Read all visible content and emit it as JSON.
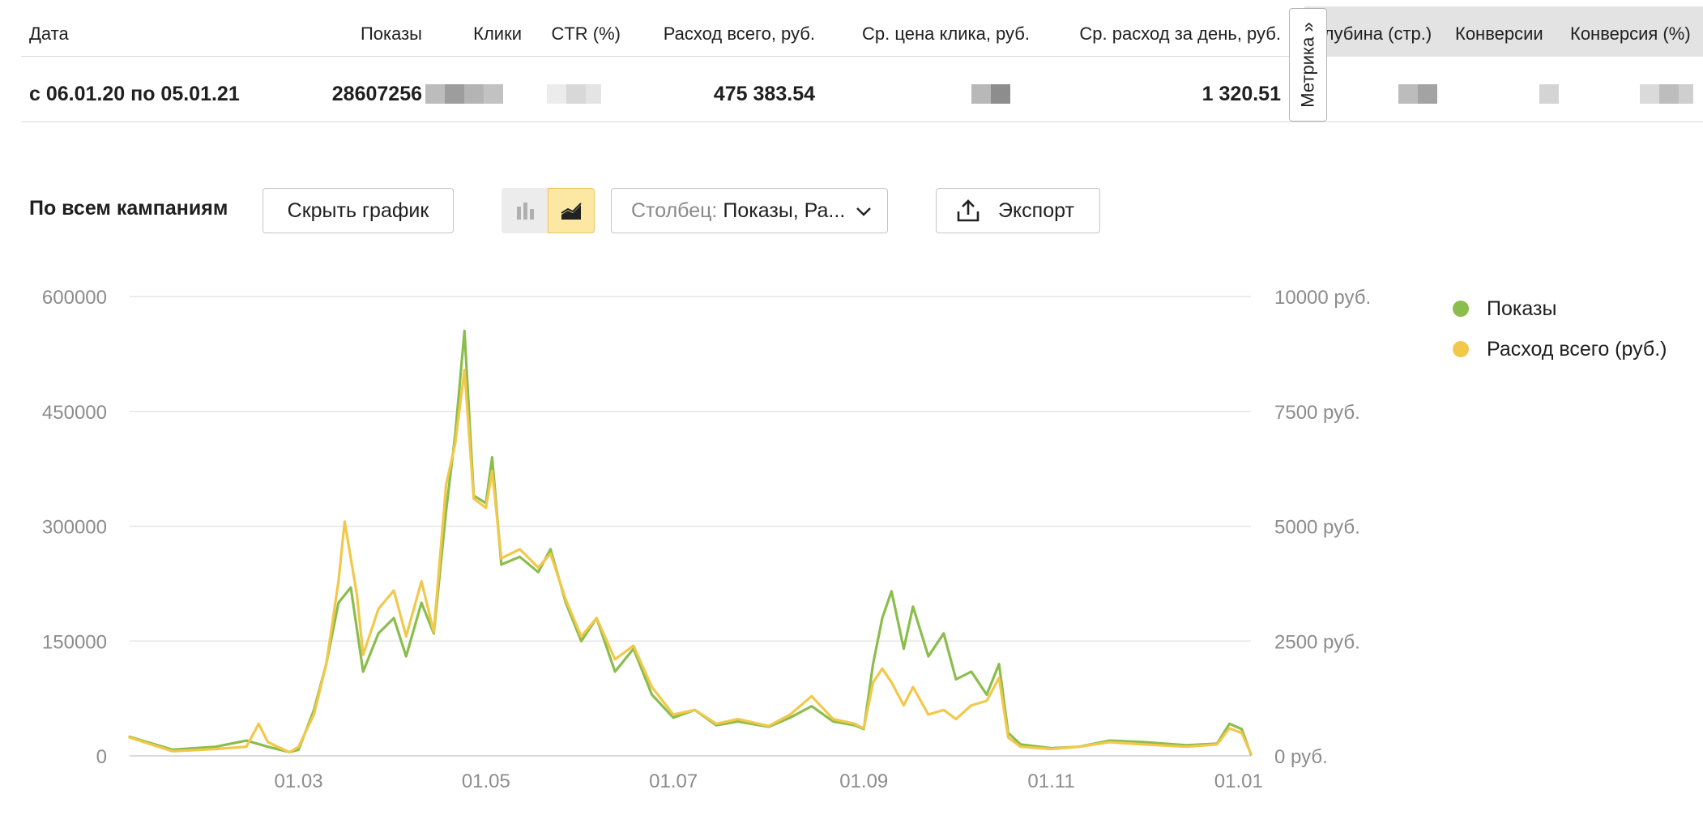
{
  "table": {
    "headers": {
      "date": "Дата",
      "shows": "Показы",
      "clicks": "Клики",
      "ctr": "CTR (%)",
      "spend": "Расход всего, руб.",
      "cpc": "Ср. цена клика, руб.",
      "daily": "Ср. расход за день, руб.",
      "depth": "Глубина (стр.)",
      "conversions": "Конверсии",
      "conv_rate": "Конверсия (%)"
    },
    "row": {
      "date": "с 06.01.20 по 05.01.21",
      "shows": "28607256",
      "spend": "475 383.54",
      "daily": "1 320.51"
    },
    "metrika_tab": "Метрика »"
  },
  "toolbar": {
    "title": "По всем кампаниям",
    "hide_chart": "Скрыть график",
    "column_prefix": "Столбец:",
    "column_value": "Показы, Ра...",
    "export": "Экспорт"
  },
  "legend": {
    "shows": "Показы",
    "spend": "Расход всего (руб.)"
  },
  "colors": {
    "shows": "#8bbd4c",
    "spend": "#f2c84b",
    "active_segment": "#fde8a3"
  },
  "chart_data": {
    "type": "line",
    "x_ticks": [
      "01.03",
      "01.05",
      "01.07",
      "01.09",
      "01.11",
      "01.01"
    ],
    "y_left_ticks": [
      "0",
      "150000",
      "300000",
      "450000",
      "600000"
    ],
    "y_right_ticks": [
      "0 руб.",
      "2500 руб.",
      "5000 руб.",
      "7500 руб.",
      "10000 руб."
    ],
    "y_left_range": [
      0,
      600000
    ],
    "y_right_range": [
      0,
      10000
    ],
    "x_range": [
      "06.01.20",
      "05.01.21"
    ],
    "grid": true,
    "legend_position": "right",
    "series": [
      {
        "name": "Показы",
        "axis": "left",
        "points": [
          [
            "06.01.20",
            25000
          ],
          [
            "20.01.20",
            8000
          ],
          [
            "03.02.20",
            12000
          ],
          [
            "13.02.20",
            20000
          ],
          [
            "20.02.20",
            12000
          ],
          [
            "27.02.20",
            5000
          ],
          [
            "01.03.20",
            8000
          ],
          [
            "06.03.20",
            60000
          ],
          [
            "10.03.20",
            120000
          ],
          [
            "14.03.20",
            200000
          ],
          [
            "18.03.20",
            220000
          ],
          [
            "22.03.20",
            110000
          ],
          [
            "27.03.20",
            160000
          ],
          [
            "01.04.20",
            180000
          ],
          [
            "05.04.20",
            130000
          ],
          [
            "10.04.20",
            200000
          ],
          [
            "14.04.20",
            160000
          ],
          [
            "18.04.20",
            320000
          ],
          [
            "21.04.20",
            420000
          ],
          [
            "24.04.20",
            555000
          ],
          [
            "27.04.20",
            340000
          ],
          [
            "01.05.20",
            330000
          ],
          [
            "03.05.20",
            390000
          ],
          [
            "06.05.20",
            250000
          ],
          [
            "12.05.20",
            260000
          ],
          [
            "18.05.20",
            240000
          ],
          [
            "22.05.20",
            270000
          ],
          [
            "27.05.20",
            200000
          ],
          [
            "01.06.20",
            150000
          ],
          [
            "06.06.20",
            180000
          ],
          [
            "12.06.20",
            110000
          ],
          [
            "18.06.20",
            140000
          ],
          [
            "24.06.20",
            80000
          ],
          [
            "01.07.20",
            50000
          ],
          [
            "08.07.20",
            60000
          ],
          [
            "15.07.20",
            40000
          ],
          [
            "22.07.20",
            45000
          ],
          [
            "01.08.20",
            38000
          ],
          [
            "08.08.20",
            50000
          ],
          [
            "15.08.20",
            65000
          ],
          [
            "22.08.20",
            45000
          ],
          [
            "29.08.20",
            40000
          ],
          [
            "01.09.20",
            35000
          ],
          [
            "04.09.20",
            120000
          ],
          [
            "07.09.20",
            180000
          ],
          [
            "10.09.20",
            215000
          ],
          [
            "14.09.20",
            140000
          ],
          [
            "17.09.20",
            195000
          ],
          [
            "22.09.20",
            130000
          ],
          [
            "27.09.20",
            160000
          ],
          [
            "01.10.20",
            100000
          ],
          [
            "06.10.20",
            110000
          ],
          [
            "11.10.20",
            80000
          ],
          [
            "15.10.20",
            120000
          ],
          [
            "18.10.20",
            30000
          ],
          [
            "22.10.20",
            15000
          ],
          [
            "01.11.20",
            10000
          ],
          [
            "10.11.20",
            12000
          ],
          [
            "20.11.20",
            20000
          ],
          [
            "01.12.20",
            18000
          ],
          [
            "15.12.20",
            14000
          ],
          [
            "25.12.20",
            16000
          ],
          [
            "29.12.20",
            42000
          ],
          [
            "02.01.21",
            35000
          ],
          [
            "05.01.21",
            2000
          ]
        ]
      },
      {
        "name": "Расход всего (руб.)",
        "axis": "right",
        "points": [
          [
            "06.01.20",
            400
          ],
          [
            "20.01.20",
            100
          ],
          [
            "03.02.20",
            150
          ],
          [
            "13.02.20",
            200
          ],
          [
            "17.02.20",
            700
          ],
          [
            "20.02.20",
            300
          ],
          [
            "27.02.20",
            80
          ],
          [
            "01.03.20",
            200
          ],
          [
            "06.03.20",
            900
          ],
          [
            "10.03.20",
            2000
          ],
          [
            "14.03.20",
            3800
          ],
          [
            "16.03.20",
            5100
          ],
          [
            "20.03.20",
            3500
          ],
          [
            "22.03.20",
            2200
          ],
          [
            "27.03.20",
            3200
          ],
          [
            "01.04.20",
            3600
          ],
          [
            "05.04.20",
            2600
          ],
          [
            "10.04.20",
            3800
          ],
          [
            "14.04.20",
            2700
          ],
          [
            "18.04.20",
            5900
          ],
          [
            "21.04.20",
            6800
          ],
          [
            "24.04.20",
            8400
          ],
          [
            "27.04.20",
            5600
          ],
          [
            "01.05.20",
            5400
          ],
          [
            "03.05.20",
            6200
          ],
          [
            "06.05.20",
            4300
          ],
          [
            "12.05.20",
            4500
          ],
          [
            "18.05.20",
            4100
          ],
          [
            "22.05.20",
            4400
          ],
          [
            "27.05.20",
            3400
          ],
          [
            "01.06.20",
            2600
          ],
          [
            "06.06.20",
            3000
          ],
          [
            "12.06.20",
            2100
          ],
          [
            "18.06.20",
            2400
          ],
          [
            "24.06.20",
            1500
          ],
          [
            "01.07.20",
            900
          ],
          [
            "08.07.20",
            1000
          ],
          [
            "15.07.20",
            700
          ],
          [
            "22.07.20",
            800
          ],
          [
            "01.08.20",
            650
          ],
          [
            "08.08.20",
            900
          ],
          [
            "15.08.20",
            1300
          ],
          [
            "22.08.20",
            800
          ],
          [
            "29.08.20",
            700
          ],
          [
            "01.09.20",
            600
          ],
          [
            "04.09.20",
            1600
          ],
          [
            "07.09.20",
            1900
          ],
          [
            "10.09.20",
            1600
          ],
          [
            "14.09.20",
            1100
          ],
          [
            "17.09.20",
            1500
          ],
          [
            "22.09.20",
            900
          ],
          [
            "27.09.20",
            1000
          ],
          [
            "01.10.20",
            800
          ],
          [
            "06.10.20",
            1100
          ],
          [
            "11.10.20",
            1200
          ],
          [
            "15.10.20",
            1700
          ],
          [
            "18.10.20",
            400
          ],
          [
            "22.10.20",
            200
          ],
          [
            "01.11.20",
            150
          ],
          [
            "10.11.20",
            200
          ],
          [
            "20.11.20",
            300
          ],
          [
            "01.12.20",
            250
          ],
          [
            "15.12.20",
            200
          ],
          [
            "25.12.20",
            250
          ],
          [
            "29.12.20",
            600
          ],
          [
            "02.01.21",
            500
          ],
          [
            "05.01.21",
            50
          ]
        ]
      }
    ]
  }
}
